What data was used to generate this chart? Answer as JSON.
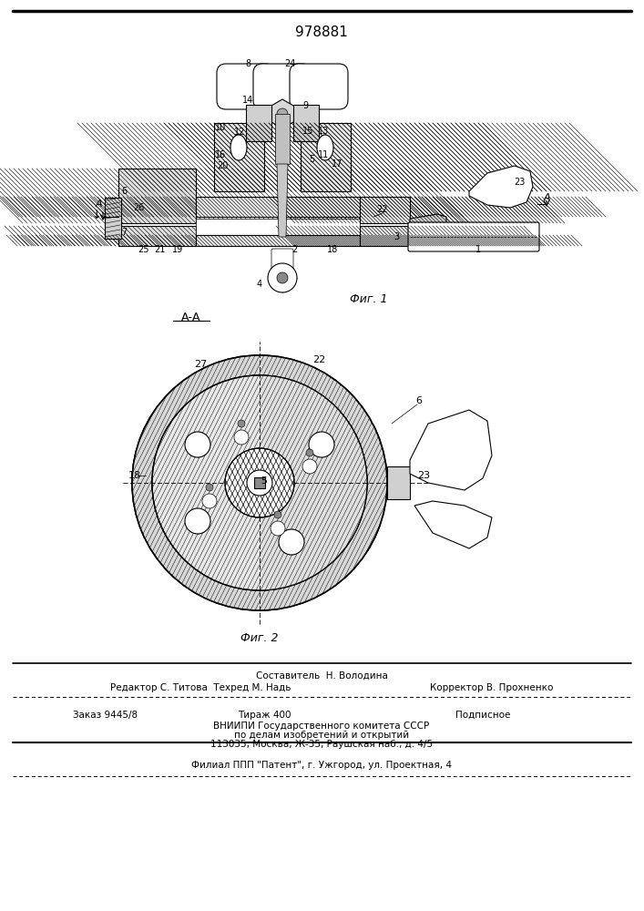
{
  "title": "978881",
  "fig1_label": "Фиг. 1",
  "fig2_label": "Фиг. 2",
  "section_label": "А-А",
  "bg_color": "#ffffff"
}
